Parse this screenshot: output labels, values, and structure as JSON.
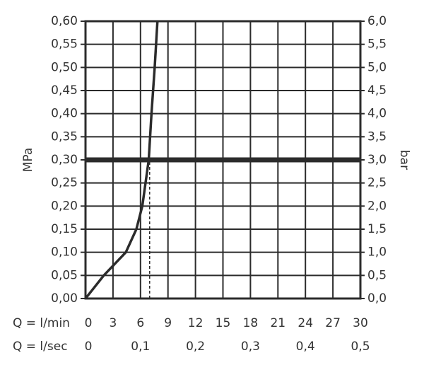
{
  "chart_data": {
    "type": "line",
    "ylabel": "MPa",
    "y2label": "bar",
    "xlabel": "Q = l/min",
    "x2label": "Q = l/sec",
    "xlim": [
      0,
      30
    ],
    "xticks": [
      0,
      3,
      6,
      9,
      12,
      15,
      18,
      21,
      24,
      27,
      30
    ],
    "x2lim": [
      0,
      0.5
    ],
    "x2ticks": [
      0,
      {
        "value": 0.1,
        "label": "0,1"
      },
      {
        "value": 0.2,
        "label": "0,2"
      },
      {
        "value": 0.3,
        "label": "0,3"
      },
      {
        "value": 0.4,
        "label": "0,4"
      },
      {
        "value": 0.5,
        "label": "0,5"
      }
    ],
    "ylim": [
      0,
      0.6
    ],
    "yticks": [
      {
        "value": 0,
        "label": "0,00"
      },
      {
        "value": 0.05,
        "label": "0,05"
      },
      {
        "value": 0.1,
        "label": "0,10"
      },
      {
        "value": 0.15,
        "label": "0,15"
      },
      {
        "value": 0.2,
        "label": "0,20"
      },
      {
        "value": 0.25,
        "label": "0,25"
      },
      {
        "value": 0.3,
        "label": "0,30"
      },
      {
        "value": 0.35,
        "label": "0,35"
      },
      {
        "value": 0.4,
        "label": "0,40"
      },
      {
        "value": 0.45,
        "label": "0,45"
      },
      {
        "value": 0.5,
        "label": "0,50"
      },
      {
        "value": 0.55,
        "label": "0,55"
      },
      {
        "value": 0.6,
        "label": "0,60"
      }
    ],
    "y2lim": [
      0,
      6
    ],
    "y2ticks": [
      {
        "value": 0,
        "label": "0,0"
      },
      {
        "value": 0.5,
        "label": "0,5"
      },
      {
        "value": 1,
        "label": "1,0"
      },
      {
        "value": 1.5,
        "label": "1,5"
      },
      {
        "value": 2,
        "label": "2,0"
      },
      {
        "value": 2.5,
        "label": "2,5"
      },
      {
        "value": 3,
        "label": "3,0"
      },
      {
        "value": 3.5,
        "label": "3,5"
      },
      {
        "value": 4,
        "label": "4,0"
      },
      {
        "value": 4.5,
        "label": "4,5"
      },
      {
        "value": 5,
        "label": "5,0"
      },
      {
        "value": 5.5,
        "label": "5,5"
      },
      {
        "value": 6,
        "label": "6,0"
      }
    ],
    "grid": true,
    "color": "#2b2b2b",
    "series": [
      {
        "x": [
          0,
          2.0,
          4.4,
          5.55,
          6.2,
          6.55,
          6.9,
          7.2,
          7.55,
          7.85
        ],
        "values": [
          0,
          0.05,
          0.1,
          0.15,
          0.2,
          0.25,
          0.3,
          0.4,
          0.5,
          0.6
        ]
      }
    ],
    "threshold": 0.3,
    "markers": [
      {
        "x": 6,
        "y": 0.17
      },
      {
        "x": 7,
        "y": 0.3
      }
    ]
  }
}
